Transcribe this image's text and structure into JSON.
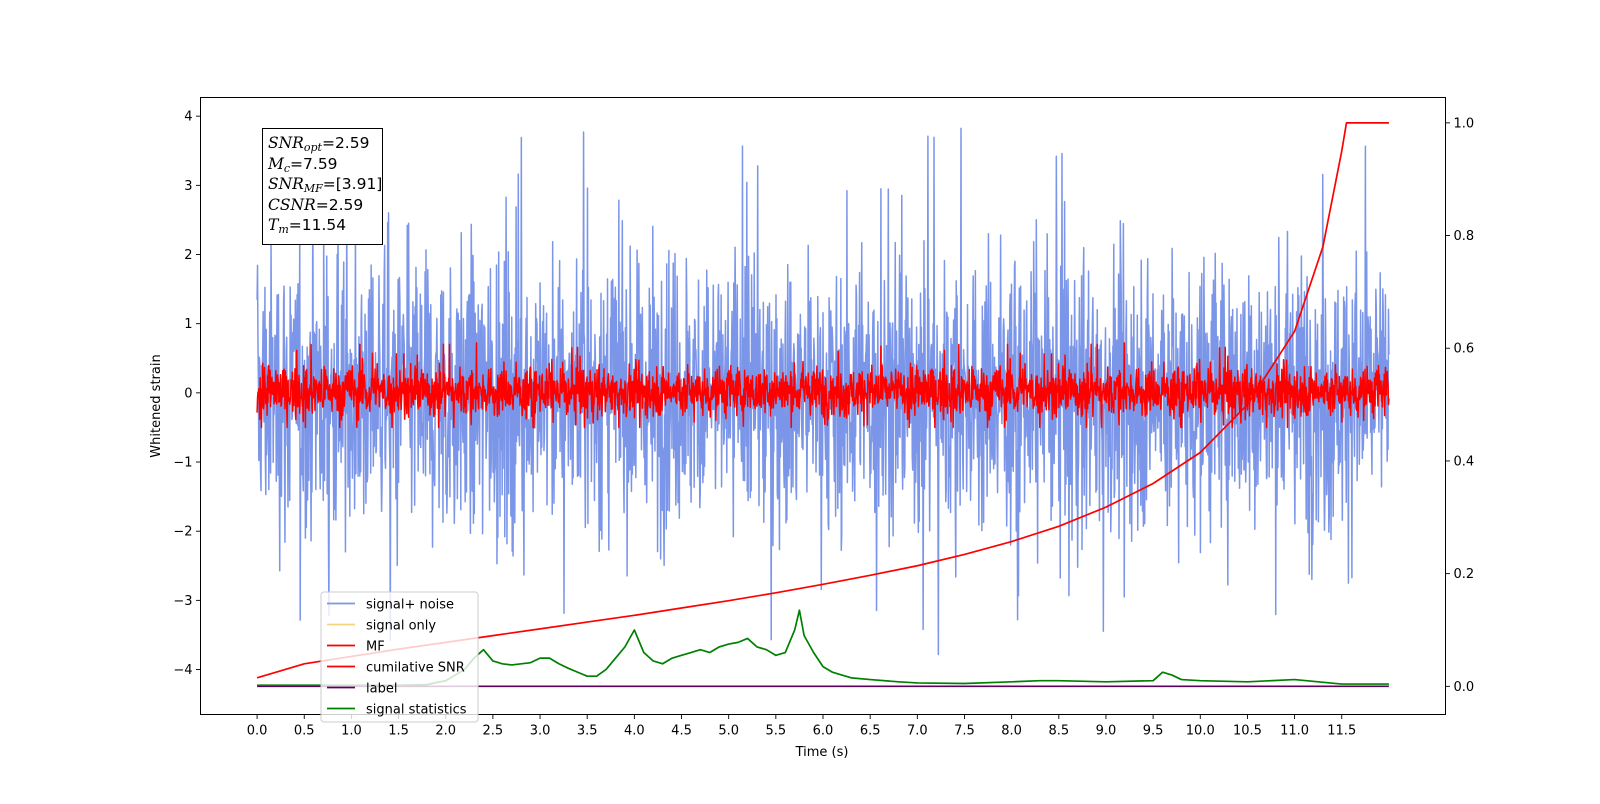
{
  "chart_data": {
    "type": "line",
    "title": "",
    "xlabel": "Time (s)",
    "ylabel": "Whitened strain",
    "y2label": "",
    "xlim": [
      -0.6,
      12.6
    ],
    "ylim": [
      -4.65,
      4.27
    ],
    "y2lim": [
      -0.05,
      1.045
    ],
    "x_ticks": [
      0.0,
      0.5,
      1.0,
      1.5,
      2.0,
      2.5,
      3.0,
      3.5,
      4.0,
      4.5,
      5.0,
      5.5,
      6.0,
      6.5,
      7.0,
      7.5,
      8.0,
      8.5,
      9.0,
      9.5,
      10.0,
      10.5,
      11.0,
      11.5
    ],
    "x_tick_labels": [
      "0.0",
      "0.5",
      "1.0",
      "1.5",
      "2.0",
      "2.5",
      "3.0",
      "3.5",
      "4.0",
      "4.5",
      "5.0",
      "5.5",
      "6.0",
      "6.5",
      "7.0",
      "7.5",
      "8.0",
      "8.5",
      "9.0",
      "9.5",
      "10.0",
      "10.5",
      "11.0",
      "11.5"
    ],
    "y_ticks": [
      -4,
      -3,
      -2,
      -1,
      0,
      1,
      2,
      3,
      4
    ],
    "y_tick_labels": [
      "−4",
      "−3",
      "−2",
      "−1",
      "0",
      "1",
      "2",
      "3",
      "4"
    ],
    "y2_ticks": [
      0.0,
      0.2,
      0.4,
      0.6,
      0.8,
      1.0
    ],
    "y2_tick_labels": [
      "0.0",
      "0.2",
      "0.4",
      "0.6",
      "0.8",
      "1.0"
    ],
    "grid": false,
    "legend_position": "lower-left",
    "legend": [
      {
        "name": "signal+ noise",
        "color": "#7b96e8"
      },
      {
        "name": "signal only",
        "color": "#f6d27d"
      },
      {
        "name": "MF",
        "color": "#ff0000"
      },
      {
        "name": "cumilative SNR",
        "color": "#ff0000"
      },
      {
        "name": "label",
        "color": "#5b005b"
      },
      {
        "name": "signal statistics",
        "color": "#008000"
      }
    ],
    "series": [
      {
        "name": "signal+ noise",
        "axis": "left",
        "color": "#7b96e8",
        "kind": "noise",
        "x_range": [
          0.0,
          12.0
        ],
        "typical_min": -2.6,
        "typical_max": 2.6,
        "extreme_min": -4.15,
        "extreme_max": 3.87
      },
      {
        "name": "MF",
        "axis": "left",
        "color": "#ff0000",
        "kind": "noise",
        "x_range": [
          0.0,
          12.0
        ],
        "typical_min": -0.45,
        "typical_max": 0.5,
        "extreme_min": -0.5,
        "extreme_max": 1.0
      },
      {
        "name": "cumilative SNR",
        "axis": "right",
        "color": "#ff0000",
        "x": [
          0.0,
          0.5,
          1.0,
          1.5,
          2.0,
          2.5,
          3.0,
          3.5,
          4.0,
          4.5,
          5.0,
          5.5,
          6.0,
          6.5,
          7.0,
          7.5,
          8.0,
          8.5,
          9.0,
          9.5,
          10.0,
          10.5,
          11.0,
          11.3,
          11.5,
          11.55,
          12.0
        ],
        "y": [
          0.015,
          0.04,
          0.053,
          0.066,
          0.078,
          0.09,
          0.102,
          0.114,
          0.126,
          0.139,
          0.152,
          0.166,
          0.181,
          0.197,
          0.214,
          0.234,
          0.257,
          0.284,
          0.318,
          0.36,
          0.415,
          0.5,
          0.63,
          0.78,
          0.95,
          1.0,
          1.0
        ]
      },
      {
        "name": "label",
        "axis": "right",
        "color": "#5b005b",
        "x": [
          0.0,
          12.0
        ],
        "y": [
          0.0,
          0.0
        ]
      },
      {
        "name": "signal statistics",
        "axis": "right",
        "color": "#008000",
        "x": [
          0.0,
          0.5,
          1.0,
          1.5,
          1.8,
          2.0,
          2.2,
          2.3,
          2.4,
          2.5,
          2.6,
          2.7,
          2.8,
          2.9,
          3.0,
          3.1,
          3.2,
          3.3,
          3.4,
          3.5,
          3.6,
          3.7,
          3.8,
          3.9,
          4.0,
          4.05,
          4.1,
          4.2,
          4.3,
          4.4,
          4.5,
          4.6,
          4.7,
          4.8,
          4.9,
          5.0,
          5.1,
          5.2,
          5.3,
          5.4,
          5.5,
          5.6,
          5.7,
          5.75,
          5.8,
          5.9,
          6.0,
          6.1,
          6.2,
          6.3,
          6.5,
          6.8,
          7.0,
          7.5,
          8.0,
          8.3,
          8.5,
          9.0,
          9.5,
          9.6,
          9.7,
          9.8,
          10.0,
          10.5,
          11.0,
          11.5,
          12.0
        ],
        "y": [
          0.002,
          0.002,
          0.002,
          0.002,
          0.003,
          0.01,
          0.03,
          0.05,
          0.065,
          0.045,
          0.04,
          0.038,
          0.04,
          0.042,
          0.05,
          0.05,
          0.04,
          0.032,
          0.025,
          0.018,
          0.018,
          0.03,
          0.05,
          0.07,
          0.1,
          0.08,
          0.06,
          0.045,
          0.04,
          0.05,
          0.055,
          0.06,
          0.065,
          0.06,
          0.07,
          0.075,
          0.078,
          0.085,
          0.07,
          0.065,
          0.055,
          0.06,
          0.1,
          0.135,
          0.09,
          0.06,
          0.035,
          0.025,
          0.02,
          0.015,
          0.012,
          0.008,
          0.006,
          0.005,
          0.008,
          0.01,
          0.01,
          0.008,
          0.01,
          0.025,
          0.02,
          0.012,
          0.01,
          0.008,
          0.012,
          0.004,
          0.004
        ]
      }
    ]
  },
  "stats_box": [
    {
      "sym": "SNR",
      "sub": "opt",
      "value": "=2.59"
    },
    {
      "sym": "M",
      "sub": "c",
      "value": "=7.59"
    },
    {
      "sym": "SNR",
      "sub": "MF",
      "value": "=[3.91]"
    },
    {
      "sym": "CSNR",
      "sub": "",
      "value": "=2.59"
    },
    {
      "sym": "T",
      "sub": "m",
      "value": "=11.54"
    }
  ]
}
